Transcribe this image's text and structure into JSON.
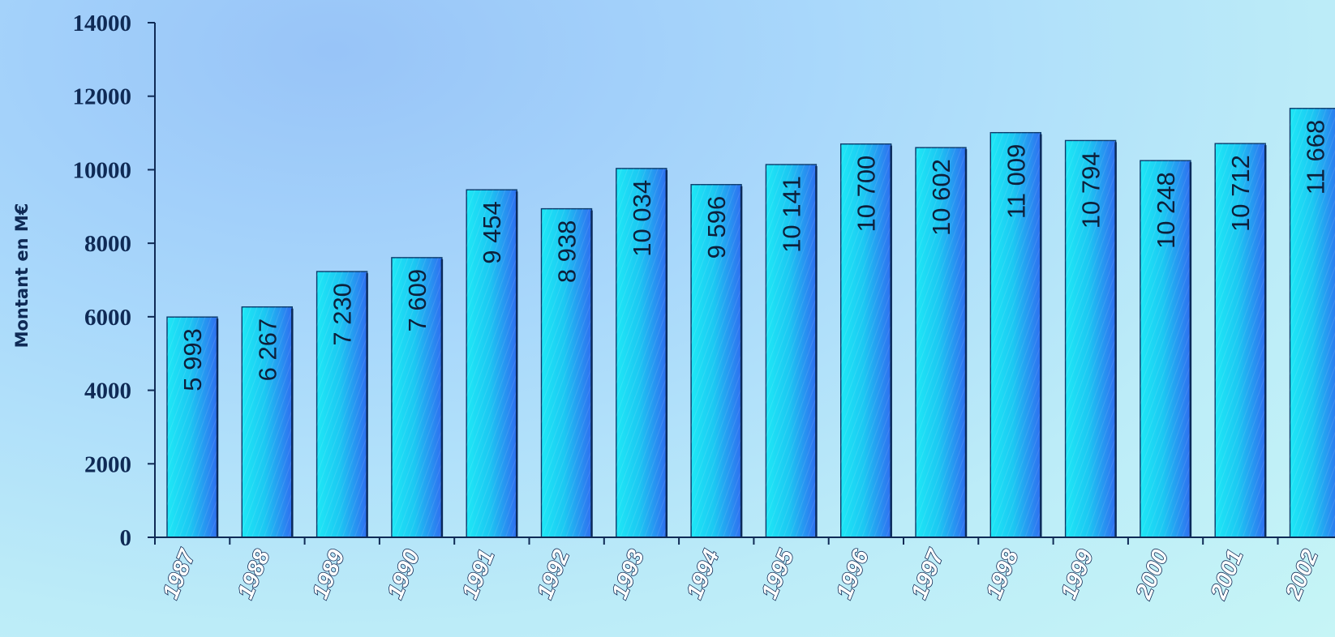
{
  "chart_data": {
    "type": "bar",
    "title": "",
    "xlabel": "",
    "ylabel": "Montant en M€",
    "ylim": [
      0,
      14000
    ],
    "yticks": [
      "0",
      "2000",
      "4000",
      "6000",
      "8000",
      "10000",
      "12000",
      "14000"
    ],
    "categories": [
      "1987",
      "1988",
      "1989",
      "1990",
      "1991",
      "1992",
      "1993",
      "1994",
      "1995",
      "1996",
      "1997",
      "1998",
      "1999",
      "2000",
      "2001",
      "2002"
    ],
    "values": [
      5993,
      6267,
      7230,
      7609,
      9454,
      8938,
      10034,
      9596,
      10141,
      10700,
      10602,
      11009,
      10794,
      10248,
      10712,
      11668
    ],
    "value_labels": [
      "5 993",
      "6 267",
      "7 230",
      "7 609",
      "9 454",
      "8 938",
      "10 034",
      "9 596",
      "10 141",
      "10 700",
      "10 602",
      "11 009",
      "10 794",
      "10 248",
      "10 712",
      "11 668"
    ],
    "grid": false,
    "legend": "none",
    "colors": {
      "bar_light": "#1ee8f6",
      "bar_mid": "#1cc8f2",
      "bar_dark": "#2f6ef0",
      "axis": "#0f2a55",
      "text": "#0f2a55",
      "xtick_fill": "#ffffff"
    }
  }
}
